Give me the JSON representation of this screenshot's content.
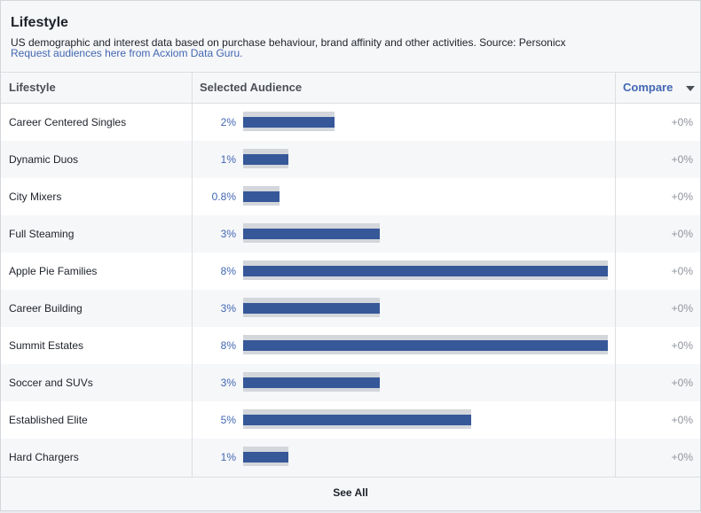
{
  "panel": {
    "title": "Lifestyle",
    "subtitle": "US demographic and interest data based on purchase behaviour, brand affinity and other activities. Source: Personicx",
    "link": "Request audiences here from Acxiom Data Guru."
  },
  "table": {
    "col_lifestyle": "Lifestyle",
    "col_selected": "Selected Audience",
    "col_compare": "Compare",
    "rows": [
      {
        "name": "Career Centered Singles",
        "pct": "2%",
        "value": 2.0,
        "compare": "+0%"
      },
      {
        "name": "Dynamic Duos",
        "pct": "1%",
        "value": 1.0,
        "compare": "+0%"
      },
      {
        "name": "City Mixers",
        "pct": "0.8%",
        "value": 0.8,
        "compare": "+0%"
      },
      {
        "name": "Full Steaming",
        "pct": "3%",
        "value": 3.0,
        "compare": "+0%"
      },
      {
        "name": "Apple Pie Families",
        "pct": "8%",
        "value": 8.0,
        "compare": "+0%"
      },
      {
        "name": "Career Building",
        "pct": "3%",
        "value": 3.0,
        "compare": "+0%"
      },
      {
        "name": "Summit Estates",
        "pct": "8%",
        "value": 8.0,
        "compare": "+0%"
      },
      {
        "name": "Soccer and SUVs",
        "pct": "3%",
        "value": 3.0,
        "compare": "+0%"
      },
      {
        "name": "Established Elite",
        "pct": "5%",
        "value": 5.0,
        "compare": "+0%"
      },
      {
        "name": "Hard Chargers",
        "pct": "1%",
        "value": 1.0,
        "compare": "+0%"
      }
    ]
  },
  "footer": {
    "see_all": "See All"
  },
  "colors": {
    "bar": "#365899",
    "bar_bg": "#d3d6db",
    "link": "#4267b2"
  }
}
